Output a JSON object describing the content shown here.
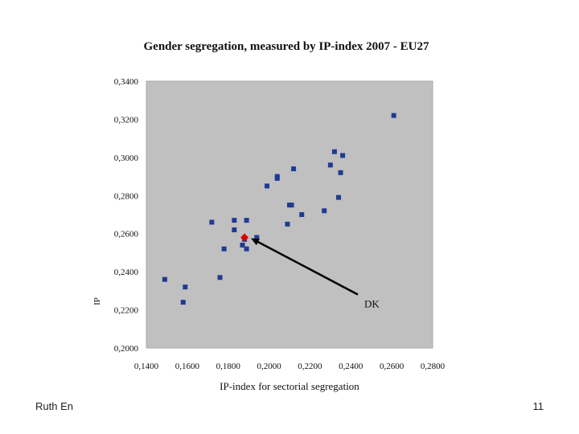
{
  "slide": {
    "footer_left": "Ruth En",
    "page_number": "11"
  },
  "chart_data": {
    "type": "scatter",
    "title": "Gender segregation, measured by IP-index 2007 - EU27",
    "xlabel": "IP-index for sectorial segregation",
    "ylabel": "IP",
    "xlim": [
      0.14,
      0.28
    ],
    "ylim": [
      0.2,
      0.34
    ],
    "x_ticks": [
      "0,1400",
      "0,1600",
      "0,1800",
      "0,2000",
      "0,2200",
      "0,2400",
      "0,2600",
      "0,2800"
    ],
    "y_ticks": [
      "0,2000",
      "0,2200",
      "0,2400",
      "0,2600",
      "0,2800",
      "0,3000",
      "0,3200",
      "0,3400"
    ],
    "grid": false,
    "plot_background": "#c0c0c0",
    "point_color": "#1f3a93",
    "highlight_color": "#e00000",
    "series": [
      {
        "points": [
          [
            0.149,
            0.236
          ],
          [
            0.158,
            0.224
          ],
          [
            0.159,
            0.232
          ],
          [
            0.172,
            0.266
          ],
          [
            0.176,
            0.237
          ],
          [
            0.178,
            0.252
          ],
          [
            0.183,
            0.267
          ],
          [
            0.183,
            0.262
          ],
          [
            0.187,
            0.254
          ],
          [
            0.189,
            0.252
          ],
          [
            0.189,
            0.267
          ],
          [
            0.188,
            0.257
          ],
          [
            0.194,
            0.258
          ],
          [
            0.199,
            0.285
          ],
          [
            0.204,
            0.289
          ],
          [
            0.204,
            0.29
          ],
          [
            0.209,
            0.265
          ],
          [
            0.21,
            0.275
          ],
          [
            0.211,
            0.275
          ],
          [
            0.212,
            0.294
          ],
          [
            0.216,
            0.27
          ],
          [
            0.227,
            0.272
          ],
          [
            0.23,
            0.296
          ],
          [
            0.232,
            0.303
          ],
          [
            0.234,
            0.279
          ],
          [
            0.235,
            0.292
          ],
          [
            0.236,
            0.301
          ],
          [
            0.261,
            0.322
          ]
        ]
      }
    ],
    "highlight": {
      "label": "DK",
      "x": 0.188,
      "y": 0.258,
      "label_x": 0.245,
      "label_y": 0.223
    }
  }
}
